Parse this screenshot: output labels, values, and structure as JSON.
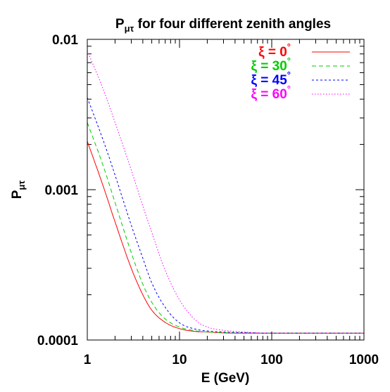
{
  "chart_data": {
    "type": "line",
    "title": {
      "main": "P",
      "sub": "μτ",
      "rest": " for four different zenith angles"
    },
    "xlabel": "E (GeV)",
    "ylabel": {
      "main": "P",
      "sub": "μτ"
    },
    "x_scale": "log",
    "y_scale": "log",
    "xlim": [
      1,
      1000
    ],
    "ylim": [
      0.0001,
      0.01
    ],
    "x_ticks": [
      "1",
      "10",
      "100",
      "1000"
    ],
    "y_ticks": [
      "0.0001",
      "0.001",
      "0.01"
    ],
    "legend_position": "top-right",
    "grid": false,
    "x": [
      1,
      1.5,
      2,
      3,
      4,
      5,
      7,
      10,
      15,
      20,
      30,
      50,
      100,
      200,
      1000
    ],
    "series": [
      {
        "name": "ξ = 0°",
        "label_main": "ξ = 0",
        "label_unit": "°",
        "color": "#ff0000",
        "dash": "solid",
        "values": [
          0.0021,
          0.00104,
          0.00061,
          0.0003,
          0.0002,
          0.000158,
          0.000131,
          0.000119,
          0.000114,
          0.000113,
          0.0001115,
          0.000111,
          0.000111,
          0.000111,
          0.000111
        ]
      },
      {
        "name": "ξ = 30°",
        "label_main": "ξ = 30",
        "label_unit": "°",
        "color": "#00cc00",
        "dash": "dashed",
        "values": [
          0.0028,
          0.00142,
          0.00082,
          0.00038,
          0.000235,
          0.000178,
          0.000138,
          0.000122,
          0.000115,
          0.000113,
          0.000112,
          0.000111,
          0.000111,
          0.000111,
          0.000111
        ]
      },
      {
        "name": "ξ = 45°",
        "label_main": "ξ = 45",
        "label_unit": "°",
        "color": "#0000ff",
        "dash": "short-dashed",
        "values": [
          0.0041,
          0.0021,
          0.00125,
          0.00058,
          0.00035,
          0.00024,
          0.000165,
          0.00013,
          0.000118,
          0.000115,
          0.000113,
          0.000112,
          0.000111,
          0.000111,
          0.000111
        ]
      },
      {
        "name": "ξ = 60°",
        "label_main": "ξ = 60",
        "label_unit": "°",
        "color": "#ff00ff",
        "dash": "dotted",
        "values": [
          0.0084,
          0.0046,
          0.0028,
          0.00135,
          0.00078,
          0.00052,
          0.00029,
          0.000185,
          0.000135,
          0.000122,
          0.000116,
          0.000113,
          0.000111,
          0.000111,
          0.000111
        ]
      }
    ]
  }
}
